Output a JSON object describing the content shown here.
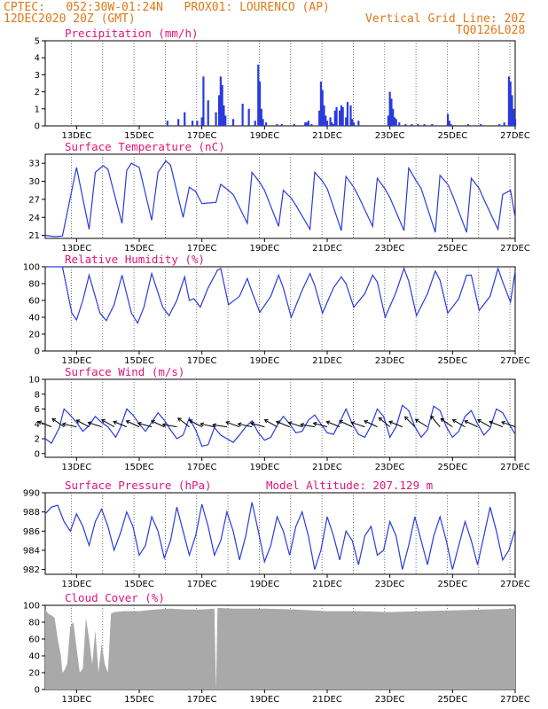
{
  "header": {
    "line1": "CPTEC:   052:30W-01:24N   PROX01: LOURENCO (AP)",
    "line2_left": "12DEC2020 20Z (GMT)",
    "line2_right": "Vertical Grid Line: 20Z",
    "line3_right": "TQ0126L028"
  },
  "colors": {
    "header": "#e07818",
    "panel_title": "#e0157a",
    "series": "#2a3bdc",
    "cloud": "#a9a9a9",
    "grid": "#555555"
  },
  "chart_data": [
    {
      "type": "bar",
      "title": "Precipitation (mm/h)",
      "ylim": [
        0,
        5
      ],
      "yticks": [
        "0",
        "1",
        "2",
        "3",
        "4",
        "5"
      ],
      "xticks": [
        "13DEC",
        "15DEC",
        "17DEC",
        "19DEC",
        "21DEC",
        "23DEC",
        "25DEC",
        "27DEC"
      ],
      "x_unit": "days from 12DEC2020 00Z",
      "xlim": [
        12.0,
        27.0
      ],
      "series": [
        {
          "x": [
            15.9,
            16.25,
            16.45,
            16.7,
            16.85,
            17.0,
            17.05,
            17.2,
            17.45,
            17.55,
            17.6,
            17.65,
            17.7,
            17.75,
            18.0,
            18.3,
            18.5,
            18.7,
            18.8,
            18.85,
            18.9,
            18.95,
            19.05,
            19.4,
            19.55,
            19.95,
            20.3,
            20.35,
            20.4,
            20.5,
            20.75,
            20.8,
            20.85,
            20.9,
            20.95,
            21.0,
            21.1,
            21.15,
            21.2,
            21.25,
            21.3,
            21.4,
            21.45,
            21.5,
            21.6,
            21.65,
            21.75,
            21.8,
            21.85,
            22.0,
            22.95,
            23.0,
            23.05,
            23.1,
            23.15,
            23.2,
            23.3,
            23.5,
            23.7,
            23.9,
            24.1,
            24.35,
            24.85,
            24.9,
            24.95,
            25.5,
            25.9,
            26.5,
            26.65,
            26.8,
            26.85,
            26.9,
            26.95,
            27.0
          ],
          "values": [
            0.3,
            0.4,
            0.8,
            0.3,
            0.3,
            0.5,
            2.9,
            1.5,
            0.8,
            1.8,
            2.9,
            2.4,
            1.2,
            0.6,
            0.4,
            1.3,
            1.0,
            0.3,
            3.6,
            2.6,
            1.0,
            0.4,
            0.2,
            0.1,
            0.1,
            0.1,
            0.2,
            0.2,
            0.3,
            0.1,
            0.9,
            2.6,
            2.1,
            1.2,
            0.6,
            0.3,
            0.5,
            0.2,
            0.1,
            0.9,
            1.1,
            0.9,
            1.2,
            1.1,
            0.5,
            1.4,
            1.2,
            0.4,
            0.2,
            0.3,
            0.6,
            2.0,
            1.6,
            1.0,
            0.5,
            0.4,
            0.2,
            0.1,
            0.1,
            0.1,
            0.1,
            0.1,
            0.7,
            0.3,
            0.1,
            0.1,
            0.1,
            0.1,
            0.2,
            2.9,
            2.6,
            1.8,
            1.0,
            0.4
          ]
        }
      ]
    },
    {
      "type": "line",
      "title": "Surface Temperature (nC)",
      "ylim": [
        20.5,
        34.5
      ],
      "yticks": [
        "21",
        "24",
        "27",
        "30",
        "33"
      ],
      "xticks": [
        "13DEC",
        "15DEC",
        "17DEC",
        "19DEC",
        "21DEC",
        "23DEC",
        "25DEC",
        "27DEC"
      ],
      "series": [
        {
          "x": [
            12.0,
            12.3,
            12.55,
            13.0,
            13.4,
            13.6,
            13.85,
            14.0,
            14.45,
            14.6,
            14.75,
            15.0,
            15.4,
            15.6,
            15.85,
            16.0,
            16.4,
            16.6,
            16.8,
            17.0,
            17.45,
            17.6,
            17.8,
            18.0,
            18.45,
            18.6,
            18.85,
            19.0,
            19.45,
            19.6,
            19.85,
            20.0,
            20.45,
            20.6,
            20.85,
            21.0,
            21.45,
            21.6,
            21.85,
            22.0,
            22.45,
            22.6,
            22.85,
            23.0,
            23.45,
            23.6,
            23.85,
            24.0,
            24.45,
            24.6,
            24.85,
            25.0,
            25.45,
            25.6,
            25.85,
            26.0,
            26.45,
            26.6,
            26.85,
            27.0
          ],
          "values": [
            21.0,
            20.8,
            20.9,
            32.3,
            22.0,
            31.5,
            32.6,
            32.0,
            23.0,
            31.8,
            33.0,
            32.3,
            23.5,
            31.5,
            33.4,
            32.7,
            24.0,
            29.0,
            28.3,
            26.3,
            26.5,
            29.5,
            28.7,
            27.8,
            23.0,
            31.5,
            29.8,
            28.5,
            22.5,
            28.5,
            27.2,
            26.0,
            22.0,
            31.5,
            30.0,
            28.8,
            21.8,
            30.8,
            29.0,
            27.5,
            22.5,
            30.5,
            28.7,
            27.3,
            21.8,
            32.2,
            30.0,
            28.8,
            21.5,
            31.0,
            29.5,
            27.7,
            21.5,
            30.5,
            28.8,
            27.0,
            22.0,
            27.8,
            28.5,
            24.0
          ]
        }
      ]
    },
    {
      "type": "line",
      "title": "Relative Humidity (%)",
      "ylim": [
        0,
        100
      ],
      "yticks": [
        "0",
        "20",
        "40",
        "60",
        "80",
        "100"
      ],
      "xticks": [
        "13DEC",
        "15DEC",
        "17DEC",
        "19DEC",
        "21DEC",
        "23DEC",
        "25DEC",
        "27DEC"
      ],
      "series": [
        {
          "x": [
            12.0,
            12.3,
            12.55,
            12.85,
            13.0,
            13.2,
            13.4,
            13.75,
            13.95,
            14.2,
            14.45,
            14.75,
            14.95,
            15.15,
            15.4,
            15.75,
            15.95,
            16.2,
            16.45,
            16.6,
            16.75,
            16.95,
            17.2,
            17.5,
            17.6,
            17.85,
            18.2,
            18.45,
            18.6,
            18.85,
            19.2,
            19.45,
            19.6,
            19.85,
            20.2,
            20.45,
            20.6,
            20.85,
            21.2,
            21.45,
            21.6,
            21.85,
            22.2,
            22.45,
            22.6,
            22.85,
            23.2,
            23.45,
            23.6,
            23.85,
            24.2,
            24.45,
            24.6,
            24.85,
            25.2,
            25.45,
            25.6,
            25.85,
            26.2,
            26.45,
            26.6,
            26.85,
            27.0
          ],
          "values": [
            100,
            100,
            100,
            45,
            37,
            60,
            90,
            45,
            36,
            55,
            90,
            45,
            33,
            52,
            92,
            52,
            42,
            60,
            88,
            60,
            62,
            52,
            75,
            96,
            98,
            55,
            65,
            86,
            70,
            46,
            65,
            90,
            75,
            40,
            72,
            92,
            78,
            45,
            75,
            88,
            80,
            52,
            68,
            90,
            82,
            40,
            70,
            98,
            83,
            42,
            68,
            95,
            84,
            45,
            62,
            90,
            90,
            48,
            65,
            98,
            82,
            58,
            95
          ]
        }
      ]
    },
    {
      "type": "line",
      "title": "Surface Wind (m/s)",
      "ylim": [
        -0.5,
        10
      ],
      "yticks": [
        "0",
        "2",
        "4",
        "6",
        "8",
        "10"
      ],
      "xticks": [
        "13DEC",
        "15DEC",
        "17DEC",
        "19DEC",
        "21DEC",
        "23DEC",
        "25DEC",
        "27DEC"
      ],
      "series": [
        {
          "x": [
            12.0,
            12.2,
            12.45,
            12.6,
            12.75,
            13.0,
            13.2,
            13.4,
            13.6,
            13.8,
            14.0,
            14.25,
            14.4,
            14.6,
            14.8,
            15.0,
            15.2,
            15.4,
            15.6,
            15.8,
            16.0,
            16.2,
            16.4,
            16.6,
            16.8,
            17.0,
            17.2,
            17.4,
            17.6,
            17.8,
            18.0,
            18.2,
            18.4,
            18.6,
            18.8,
            19.0,
            19.2,
            19.4,
            19.6,
            19.8,
            20.0,
            20.2,
            20.4,
            20.6,
            20.8,
            21.0,
            21.2,
            21.4,
            21.6,
            21.8,
            22.0,
            22.2,
            22.4,
            22.6,
            22.8,
            23.0,
            23.2,
            23.4,
            23.6,
            23.8,
            24.0,
            24.2,
            24.4,
            24.6,
            24.8,
            25.0,
            25.2,
            25.4,
            25.6,
            25.8,
            26.0,
            26.2,
            26.4,
            26.6,
            26.8,
            27.0
          ],
          "values": [
            2.0,
            1.4,
            3.5,
            6.0,
            5.4,
            4.2,
            3.0,
            3.8,
            5.0,
            4.2,
            3.6,
            2.2,
            3.5,
            6.0,
            5.2,
            4.0,
            3.0,
            4.2,
            5.5,
            4.5,
            3.2,
            2.0,
            2.5,
            4.8,
            3.2,
            1.0,
            1.2,
            3.5,
            2.5,
            2.0,
            1.5,
            2.5,
            3.6,
            4.4,
            2.8,
            1.8,
            2.2,
            3.8,
            5.0,
            4.0,
            2.8,
            3.0,
            4.5,
            5.2,
            4.0,
            2.8,
            2.6,
            4.2,
            6.0,
            4.0,
            2.6,
            2.2,
            3.8,
            6.0,
            5.0,
            2.2,
            3.6,
            6.5,
            5.8,
            3.6,
            2.2,
            3.2,
            6.4,
            5.8,
            3.6,
            2.2,
            3.0,
            5.0,
            5.8,
            4.0,
            2.5,
            3.4,
            6.0,
            5.5,
            4.0,
            2.6
          ]
        }
      ],
      "arrows": [
        [
          12.2,
          -22
        ],
        [
          12.6,
          -35
        ],
        [
          13.0,
          -12
        ],
        [
          13.4,
          -28
        ],
        [
          13.8,
          -18
        ],
        [
          14.2,
          -30
        ],
        [
          14.6,
          -22
        ],
        [
          15.0,
          -25
        ],
        [
          15.4,
          -15
        ],
        [
          15.8,
          -25
        ],
        [
          16.2,
          -10
        ],
        [
          16.6,
          -38
        ],
        [
          17.0,
          -28
        ],
        [
          17.4,
          -12
        ],
        [
          17.8,
          -8
        ],
        [
          18.2,
          -20
        ],
        [
          18.6,
          -12
        ],
        [
          19.0,
          -15
        ],
        [
          19.4,
          -30
        ],
        [
          19.8,
          -22
        ],
        [
          20.2,
          -18
        ],
        [
          20.6,
          -10
        ],
        [
          21.0,
          -15
        ],
        [
          21.4,
          -22
        ],
        [
          21.8,
          -25
        ],
        [
          22.2,
          -18
        ],
        [
          22.6,
          -25
        ],
        [
          23.0,
          -40
        ],
        [
          23.4,
          -22
        ],
        [
          23.8,
          -45
        ],
        [
          24.2,
          -32
        ],
        [
          24.6,
          -50
        ],
        [
          25.0,
          -35
        ],
        [
          25.4,
          -30
        ],
        [
          25.8,
          -25
        ],
        [
          26.2,
          -30
        ],
        [
          26.6,
          -22
        ],
        [
          27.0,
          -20
        ]
      ]
    },
    {
      "type": "line",
      "title": "Surface Pressure (hPa)",
      "annotation": "Model Altitude: 207.129  m",
      "ylim": [
        981.5,
        990
      ],
      "yticks": [
        "982",
        "984",
        "986",
        "988",
        "990"
      ],
      "xticks": [
        "13DEC",
        "15DEC",
        "17DEC",
        "19DEC",
        "21DEC",
        "23DEC",
        "25DEC",
        "27DEC"
      ],
      "series": [
        {
          "x": [
            12.0,
            12.2,
            12.4,
            12.6,
            12.8,
            13.0,
            13.2,
            13.4,
            13.6,
            13.8,
            14.0,
            14.2,
            14.4,
            14.6,
            14.8,
            15.0,
            15.2,
            15.4,
            15.6,
            15.8,
            16.0,
            16.2,
            16.4,
            16.6,
            16.8,
            17.0,
            17.2,
            17.4,
            17.6,
            17.8,
            18.0,
            18.2,
            18.4,
            18.6,
            18.8,
            19.0,
            19.2,
            19.4,
            19.6,
            19.8,
            20.0,
            20.2,
            20.4,
            20.6,
            20.8,
            21.0,
            21.2,
            21.4,
            21.6,
            21.8,
            22.0,
            22.2,
            22.4,
            22.6,
            22.8,
            23.0,
            23.2,
            23.4,
            23.6,
            23.8,
            24.0,
            24.2,
            24.4,
            24.6,
            24.8,
            25.0,
            25.2,
            25.4,
            25.6,
            25.8,
            26.0,
            26.2,
            26.4,
            26.6,
            26.8,
            27.0
          ],
          "values": [
            987.8,
            988.5,
            988.7,
            987.0,
            986.0,
            987.8,
            986.5,
            984.5,
            987.0,
            988.3,
            986.5,
            984.0,
            985.8,
            988.0,
            986.5,
            983.5,
            984.5,
            987.5,
            986.0,
            983.2,
            985.0,
            988.5,
            986.0,
            983.5,
            985.5,
            988.8,
            986.5,
            983.5,
            985.0,
            988.0,
            986.0,
            983.0,
            985.5,
            989.0,
            986.0,
            982.8,
            984.5,
            987.5,
            986.0,
            983.5,
            986.5,
            988.0,
            985.5,
            982.0,
            984.0,
            987.5,
            985.5,
            983.0,
            986.0,
            985.0,
            982.5,
            985.5,
            986.5,
            983.5,
            984.0,
            987.0,
            985.5,
            982.0,
            984.5,
            987.5,
            985.0,
            982.5,
            985.5,
            987.5,
            985.0,
            982.0,
            984.5,
            987.0,
            985.0,
            982.5,
            985.5,
            988.5,
            986.0,
            983.0,
            984.0,
            986.2
          ]
        }
      ]
    },
    {
      "type": "area",
      "title": "Cloud Cover (%)",
      "ylim": [
        0,
        100
      ],
      "yticks": [
        "0",
        "20",
        "40",
        "60",
        "80",
        "100"
      ],
      "xticks": [
        "13DEC",
        "15DEC",
        "17DEC",
        "19DEC",
        "21DEC",
        "23DEC",
        "25DEC",
        "27DEC"
      ],
      "series": [
        {
          "x": [
            12.0,
            12.1,
            12.2,
            12.3,
            12.4,
            12.5,
            12.55,
            12.6,
            12.7,
            12.8,
            12.9,
            13.0,
            13.1,
            13.2,
            13.3,
            13.4,
            13.5,
            13.6,
            13.7,
            13.8,
            13.9,
            14.0,
            14.1,
            14.2,
            14.5,
            15.0,
            15.5,
            16.0,
            16.5,
            17.0,
            17.4,
            17.45,
            17.5,
            18.0,
            19.0,
            20.0,
            21.0,
            22.0,
            23.0,
            24.0,
            25.0,
            26.0,
            27.0
          ],
          "values": [
            95,
            90,
            88,
            85,
            60,
            40,
            20,
            22,
            30,
            75,
            80,
            50,
            20,
            25,
            85,
            60,
            30,
            70,
            20,
            55,
            30,
            20,
            90,
            92,
            93,
            93,
            95,
            96,
            95,
            95,
            96,
            0,
            97,
            96,
            96,
            95,
            93,
            93,
            92,
            93,
            94,
            95,
            96
          ]
        }
      ]
    }
  ]
}
